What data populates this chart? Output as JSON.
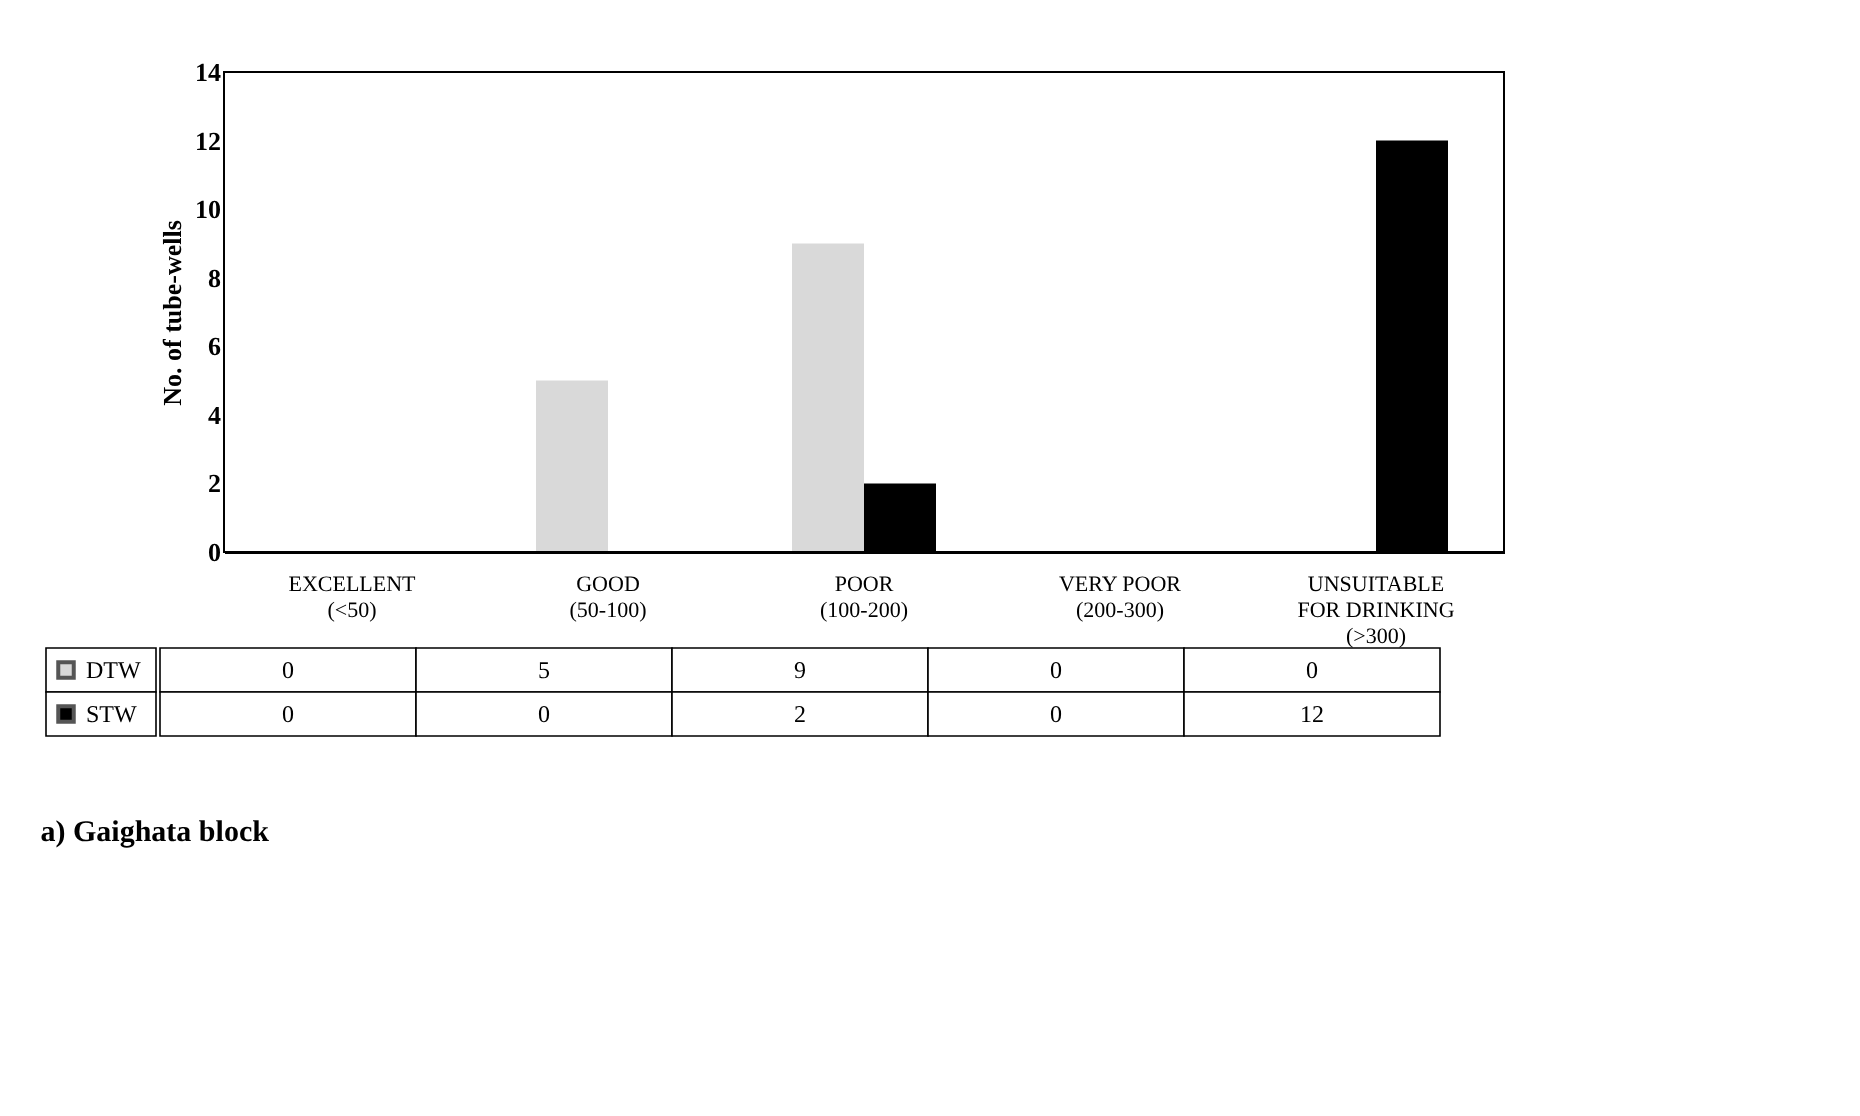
{
  "chart_data": {
    "type": "bar",
    "categories": [
      "EXCELLENT\n\n(<50)",
      "GOOD\n\n(50-100)",
      "POOR\n\n(100-200)",
      "VERY POOR\n\n(200-300)",
      "UNSUITABLE\nFOR DRINKING\n(>300)"
    ],
    "series": [
      {
        "name": "DTW",
        "color": "#d9d9d9",
        "values": [
          0,
          5,
          9,
          0,
          0
        ]
      },
      {
        "name": "STW",
        "color": "#000000",
        "values": [
          0,
          0,
          2,
          0,
          12
        ]
      }
    ],
    "ylabel": "No. of tube-wells",
    "ylim": [
      0,
      14
    ],
    "yticks": [
      0,
      2,
      4,
      6,
      8,
      10,
      12,
      14
    ],
    "grid": false,
    "legend": "bottom left",
    "data_labels": true,
    "annotations": [
      "a) Gaighata block"
    ]
  }
}
